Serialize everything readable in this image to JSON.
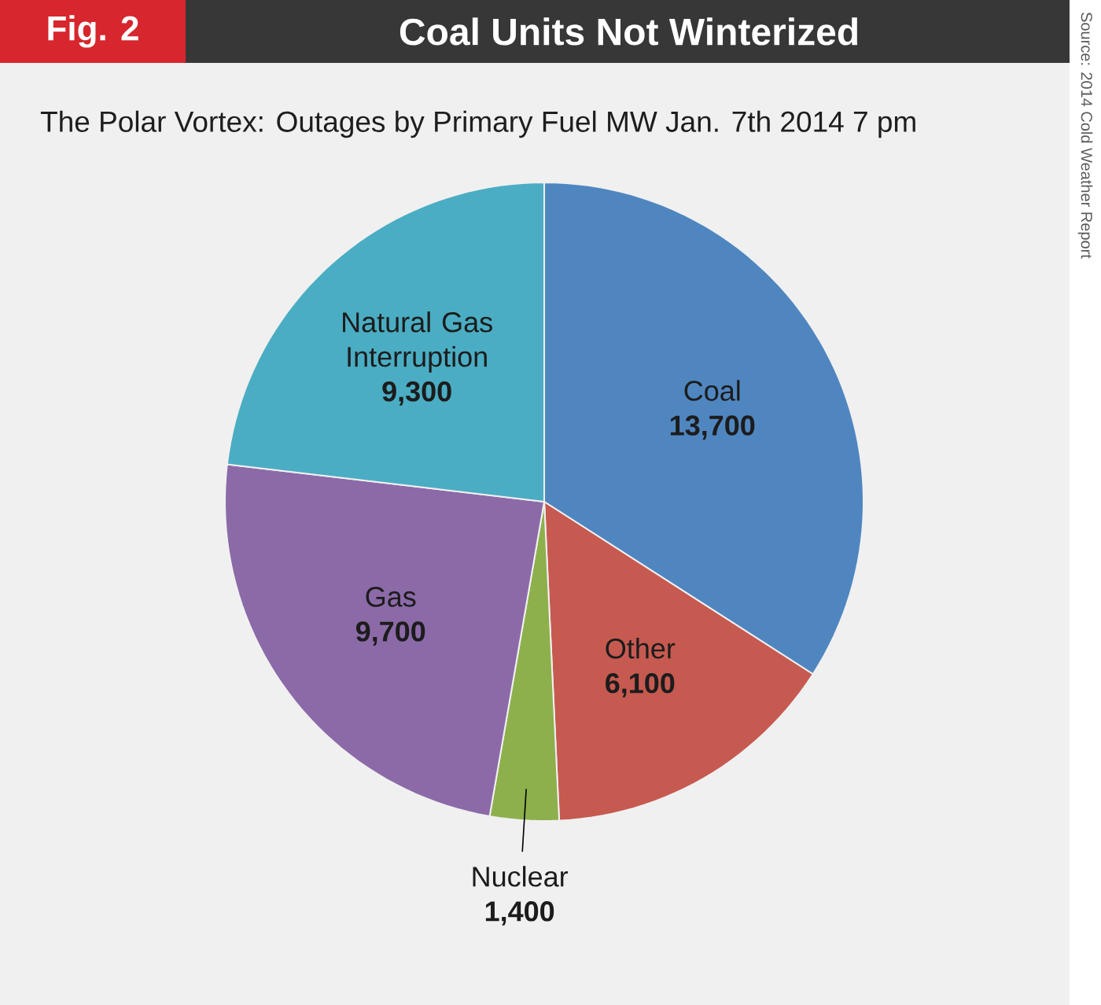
{
  "chart_data": {
    "type": "pie",
    "title": "Coal Units Not Winterized",
    "subtitle": "The Polar Vortex: Outages by Primary Fuel MW Jan. 7th 2014 7 pm",
    "annotations": [
      "Fig. 2",
      "Source: 2014 Cold Weather Report"
    ],
    "categories": [
      "Coal",
      "Other",
      "Nuclear",
      "Gas",
      "Natural Gas Interruption"
    ],
    "values": [
      13700,
      6100,
      1400,
      9700,
      9300
    ],
    "value_labels": [
      "13,700",
      "6,100",
      "1,400",
      "9,700",
      "9,300"
    ],
    "colors": [
      "#4f86c0",
      "#c65a50",
      "#8db04c",
      "#8c6aa8",
      "#4aadc3"
    ]
  }
}
